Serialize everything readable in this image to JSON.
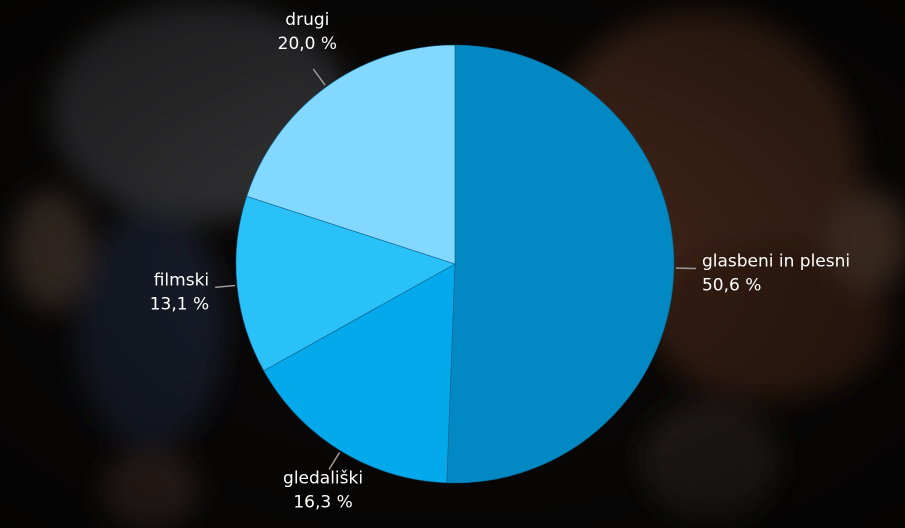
{
  "chart_data": {
    "type": "pie",
    "categories": [
      "glasbeni in plesni",
      "gledališki",
      "filmski",
      "drugi"
    ],
    "values": [
      50.6,
      16.3,
      13.1,
      20.0
    ],
    "value_labels": [
      "50,6 %",
      "16,3 %",
      "13,1 %",
      "20,0 %"
    ],
    "colors": [
      "#0288c2",
      "#03a9ea",
      "#2ac0f8",
      "#82d8ff"
    ]
  }
}
